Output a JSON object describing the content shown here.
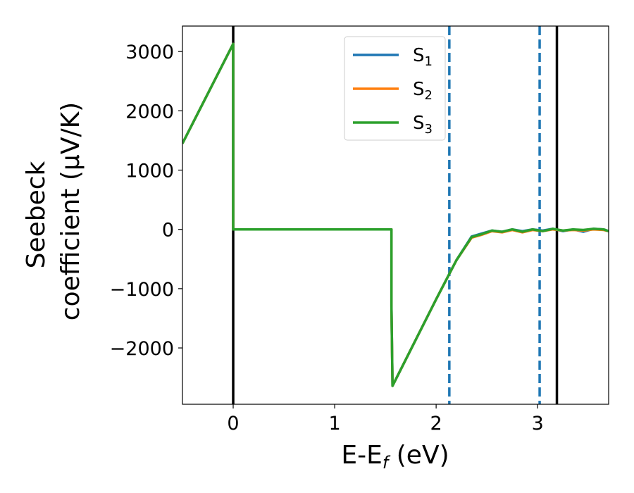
{
  "chart_data": {
    "type": "line",
    "xlabel": {
      "main": "E-E",
      "sub": "f",
      "tail": " (eV)"
    },
    "ylabel": {
      "line1": "Seebeck",
      "line2": "coefficient  (μV/K)"
    },
    "xlim": [
      -0.5,
      3.7
    ],
    "ylim": [
      -2950,
      3430
    ],
    "xticks": [
      {
        "v": 0,
        "label": "0"
      },
      {
        "v": 1,
        "label": "1"
      },
      {
        "v": 2,
        "label": "2"
      },
      {
        "v": 3,
        "label": "3"
      }
    ],
    "yticks": [
      {
        "v": 3000,
        "label": "3000"
      },
      {
        "v": 2000,
        "label": "2000"
      },
      {
        "v": 1000,
        "label": "1000"
      },
      {
        "v": 0,
        "label": "0"
      },
      {
        "v": -1000,
        "label": "−1000"
      },
      {
        "v": -2000,
        "label": "−2000"
      }
    ],
    "vlines": [
      {
        "x": 0.0,
        "color": "#000000",
        "style": "solid"
      },
      {
        "x": 2.13,
        "color": "#1f77b4",
        "style": "dashed"
      },
      {
        "x": 3.02,
        "color": "#1f77b4",
        "style": "dashed"
      },
      {
        "x": 3.19,
        "color": "#000000",
        "style": "solid"
      }
    ],
    "legend_position": "top-center",
    "series": [
      {
        "name": "S",
        "sub": "1",
        "color": "#1f77b4",
        "x": [
          -0.5,
          0.0,
          0.0,
          1.56,
          1.56,
          1.57,
          2.0,
          2.2,
          2.35,
          2.45,
          2.55,
          2.65,
          2.75,
          2.85,
          2.95,
          3.05,
          3.15,
          3.25,
          3.35,
          3.45,
          3.55,
          3.65,
          3.7
        ],
        "y": [
          1450,
          3130,
          0,
          0,
          -1300,
          -2640,
          -1180,
          -520,
          -120,
          -70,
          -20,
          -40,
          0,
          -30,
          0,
          -20,
          10,
          -30,
          0,
          -40,
          10,
          0,
          -30
        ]
      },
      {
        "name": "S",
        "sub": "2",
        "color": "#ff7f0e",
        "x": [
          -0.5,
          0.0,
          0.0,
          1.56,
          1.56,
          1.57,
          2.0,
          2.2,
          2.35,
          2.45,
          2.55,
          2.65,
          2.75,
          2.85,
          2.95,
          3.05,
          3.15,
          3.25,
          3.35,
          3.45,
          3.55,
          3.65,
          3.7
        ],
        "y": [
          1450,
          3130,
          0,
          0,
          -1300,
          -2640,
          -1180,
          -520,
          -140,
          -90,
          -30,
          -50,
          -10,
          -50,
          -10,
          -30,
          0,
          -20,
          -10,
          -20,
          0,
          -10,
          -30
        ]
      },
      {
        "name": "S",
        "sub": "3",
        "color": "#2ca02c",
        "x": [
          -0.5,
          0.0,
          0.0,
          1.56,
          1.56,
          1.57,
          2.0,
          2.2,
          2.35,
          2.45,
          2.55,
          2.65,
          2.75,
          2.85,
          2.95,
          3.05,
          3.15,
          3.25,
          3.35,
          3.45,
          3.55,
          3.65,
          3.7
        ],
        "y": [
          1450,
          3130,
          0,
          0,
          -1300,
          -2640,
          -1180,
          -520,
          -130,
          -80,
          -20,
          -40,
          0,
          -40,
          0,
          -30,
          10,
          -20,
          0,
          -10,
          10,
          0,
          -30
        ]
      }
    ]
  }
}
